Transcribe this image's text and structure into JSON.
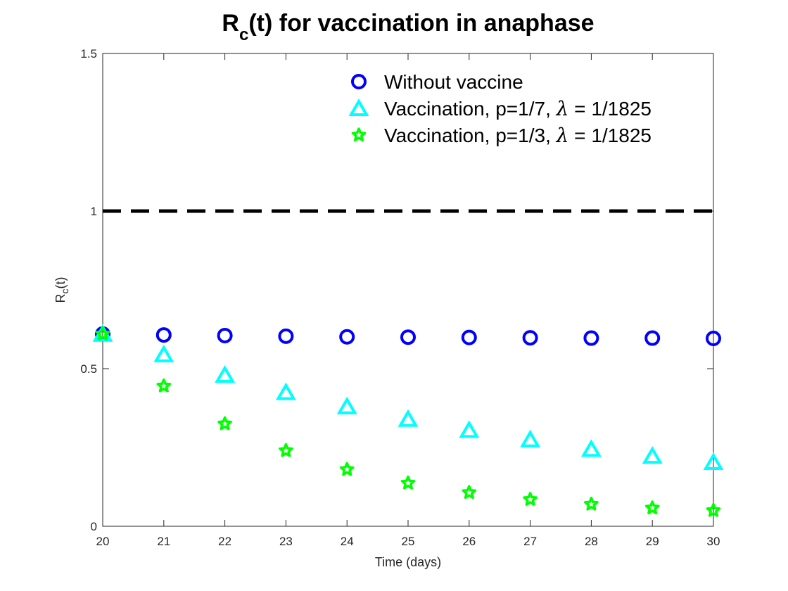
{
  "chart_data": {
    "type": "scatter",
    "title": {
      "main": "R",
      "subscript": "c",
      "rest": "(t) for vaccination in anaphase"
    },
    "xlabel": "Time (days)",
    "ylabel": {
      "main": "R",
      "subscript": "c",
      "rest": "(t)"
    },
    "xlim": [
      20,
      30
    ],
    "ylim": [
      0,
      1.5
    ],
    "x_ticks": [
      20,
      21,
      22,
      23,
      24,
      25,
      26,
      27,
      28,
      29,
      30
    ],
    "y_ticks": [
      0,
      0.5,
      1,
      1.5
    ],
    "y_tick_labels": [
      "0",
      "0.5",
      "1",
      "1.5"
    ],
    "x": [
      20,
      21,
      22,
      23,
      24,
      25,
      26,
      27,
      28,
      29,
      30
    ],
    "reference_line": {
      "y": 1,
      "style": "dashed",
      "color": "#000000"
    },
    "legend_position": "top-right",
    "series": [
      {
        "name": "Without vaccine",
        "marker": "circle",
        "color": "#0000ff",
        "values": [
          0.61,
          0.607,
          0.605,
          0.603,
          0.601,
          0.6,
          0.599,
          0.598,
          0.597,
          0.597,
          0.596
        ]
      },
      {
        "name": "Vaccination, p=1/7, λ = 1/1825",
        "legend_parts": {
          "before": "Vaccination, p=1/7, ",
          "symbol": "λ",
          "after": " = 1/1825"
        },
        "marker": "triangle",
        "color": "#00ffff",
        "values": [
          0.61,
          0.545,
          0.48,
          0.425,
          0.38,
          0.34,
          0.305,
          0.275,
          0.245,
          0.223,
          0.203
        ]
      },
      {
        "name": "Vaccination, p=1/3, λ = 1/1825",
        "legend_parts": {
          "before": "Vaccination, p=1/3, ",
          "symbol": "λ",
          "after": " = 1/1825"
        },
        "marker": "star",
        "color": "#00ff00",
        "values": [
          0.61,
          0.445,
          0.325,
          0.24,
          0.18,
          0.137,
          0.107,
          0.085,
          0.07,
          0.058,
          0.05
        ]
      }
    ]
  }
}
